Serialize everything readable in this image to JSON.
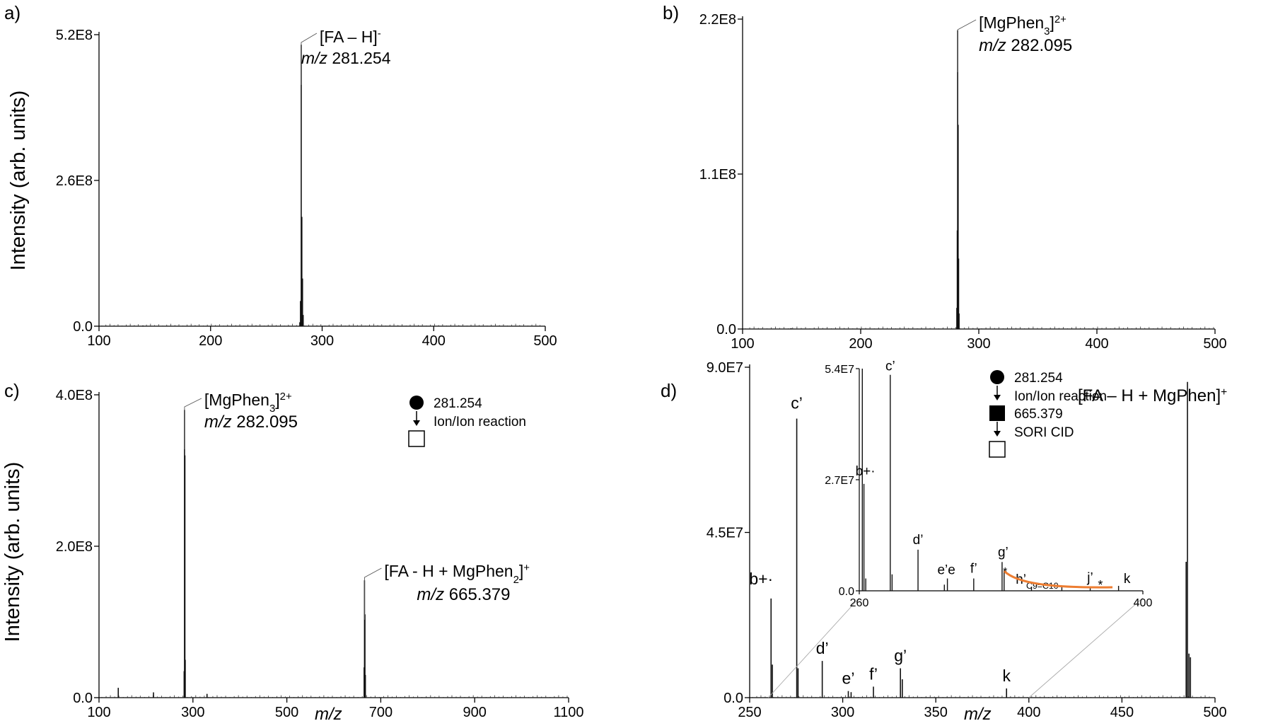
{
  "figure": {
    "y_axis_label": "Intensity (arb. units)",
    "x_axis_label": "m/z"
  },
  "chart_data": [
    {
      "panel": "a)",
      "type": "line",
      "xlim": [
        100,
        500
      ],
      "x_ticks": [
        "100",
        "200",
        "300",
        "400",
        "500"
      ],
      "y_ticks": [
        "0.0",
        "2.6E8",
        "5.2E8"
      ],
      "ylim": [
        0,
        520000000.0
      ],
      "xlabel": "",
      "ylabel": "Intensity (arb. units)",
      "peaks": [
        {
          "x": 139.5,
          "y": 1200000.0
        },
        {
          "x": 280.0,
          "y": 7000000.0
        },
        {
          "x": 280.6,
          "y": 45000000.0
        },
        {
          "x": 281.254,
          "y": 502000000.0
        },
        {
          "x": 281.8,
          "y": 195000000.0
        },
        {
          "x": 282.4,
          "y": 85000000.0
        },
        {
          "x": 283.0,
          "y": 20000000.0
        }
      ],
      "annotations": [
        {
          "x": 281.254,
          "lines": [
            "[FA – H]⁻",
            "m/z 281.254"
          ]
        }
      ]
    },
    {
      "panel": "b)",
      "type": "line",
      "xlim": [
        100,
        500
      ],
      "x_ticks": [
        "100",
        "200",
        "300",
        "400",
        "500"
      ],
      "y_ticks": [
        "0.0",
        "1.1E8",
        "2.2E8"
      ],
      "ylim": [
        0,
        220000000.0
      ],
      "xlabel": "",
      "ylabel": "",
      "peaks": [
        {
          "x": 141.0,
          "y": 600000.0
        },
        {
          "x": 248.5,
          "y": 300000.0
        },
        {
          "x": 281.4,
          "y": 15000000.0
        },
        {
          "x": 281.8,
          "y": 70000000.0
        },
        {
          "x": 282.095,
          "y": 212000000.0
        },
        {
          "x": 282.5,
          "y": 145000000.0
        },
        {
          "x": 282.9,
          "y": 50000000.0
        },
        {
          "x": 283.3,
          "y": 11000000.0
        }
      ],
      "annotations": [
        {
          "x": 282.095,
          "lines": [
            "[MgPhen₃]²⁺",
            "m/z 282.095"
          ]
        }
      ]
    },
    {
      "panel": "c)",
      "type": "line",
      "xlim": [
        100,
        1100
      ],
      "x_ticks": [
        "100",
        "300",
        "500",
        "700",
        "900",
        "1100"
      ],
      "y_ticks": [
        "0.0",
        "2.0E8",
        "4.0E8"
      ],
      "ylim": [
        0,
        400000000.0
      ],
      "xlabel": "m/z",
      "ylabel": "Intensity (arb. units)",
      "peaks": [
        {
          "x": 141.0,
          "y": 13000000.0
        },
        {
          "x": 216.0,
          "y": 7000000.0
        },
        {
          "x": 281.3,
          "y": 35000000.0
        },
        {
          "x": 282.095,
          "y": 380000000.0
        },
        {
          "x": 282.9,
          "y": 320000000.0
        },
        {
          "x": 283.6,
          "y": 50000000.0
        },
        {
          "x": 330.0,
          "y": 5000000.0
        },
        {
          "x": 664.6,
          "y": 40000000.0
        },
        {
          "x": 665.379,
          "y": 155000000.0
        },
        {
          "x": 666.3,
          "y": 110000000.0
        },
        {
          "x": 667.2,
          "y": 30000000.0
        }
      ],
      "annotations": [
        {
          "x": 282.095,
          "lines": [
            "[MgPhen₃]²⁺",
            "m/z 282.095"
          ]
        },
        {
          "x": 665.379,
          "lines": [
            "[FA - H + MgPhen₂]⁺",
            "m/z 665.379"
          ]
        }
      ],
      "scheme": [
        "281.254",
        "Ion/Ion reaction"
      ]
    },
    {
      "panel": "d)",
      "type": "line",
      "xlim": [
        250,
        500
      ],
      "x_ticks": [
        "250",
        "300",
        "350",
        "400",
        "450",
        "500"
      ],
      "y_ticks": [
        "0.0",
        "4.5E7",
        "9.0E7"
      ],
      "ylim": [
        0,
        90000000.0
      ],
      "xlabel": "m/z",
      "ylabel": "",
      "peaks": [
        {
          "x": 261.5,
          "y": 27000000.0
        },
        {
          "x": 262.2,
          "y": 9000000.0
        },
        {
          "x": 275.3,
          "y": 76000000.0
        },
        {
          "x": 276.0,
          "y": 8000000.0
        },
        {
          "x": 289.0,
          "y": 10000000.0
        },
        {
          "x": 303.0,
          "y": 1800000.0
        },
        {
          "x": 304.5,
          "y": 1500000.0
        },
        {
          "x": 316.5,
          "y": 3000000.0
        },
        {
          "x": 331.0,
          "y": 8000000.0
        },
        {
          "x": 332.0,
          "y": 5000000.0
        },
        {
          "x": 388.0,
          "y": 2500000.0
        },
        {
          "x": 484.5,
          "y": 37000000.0
        },
        {
          "x": 485.2,
          "y": 86000000.0
        },
        {
          "x": 486.0,
          "y": 12000000.0
        },
        {
          "x": 486.8,
          "y": 11000000.0
        }
      ],
      "annotations": [
        {
          "x": 485.2,
          "lines": [
            "[FA – H + MgPhen]⁺"
          ]
        }
      ],
      "peak_labels": [
        {
          "x": 261.5,
          "label": "b+·"
        },
        {
          "x": 275.3,
          "label": "c’"
        },
        {
          "x": 289.0,
          "label": "d’"
        },
        {
          "x": 303.0,
          "label": "e’"
        },
        {
          "x": 316.5,
          "label": "f’"
        },
        {
          "x": 331.0,
          "label": "g’"
        },
        {
          "x": 388.0,
          "label": "k"
        }
      ],
      "scheme": [
        "281.254",
        "Ion/Ion reaction",
        "665.379",
        "SORI CID"
      ],
      "inset": {
        "type": "line",
        "xlim": [
          260,
          400
        ],
        "x_ticks": [
          "260",
          "400"
        ],
        "y_ticks": [
          "0.0",
          "2.7E7",
          "5.4E7"
        ],
        "ylim": [
          0,
          54000000.0
        ],
        "peaks": [
          {
            "x": 261.5,
            "y": 54000000.0
          },
          {
            "x": 262.3,
            "y": 26000000.0
          },
          {
            "x": 263.2,
            "y": 3000000.0
          },
          {
            "x": 275.3,
            "y": 52500000.0
          },
          {
            "x": 276.2,
            "y": 4000000.0
          },
          {
            "x": 289.0,
            "y": 10000000.0
          },
          {
            "x": 302.0,
            "y": 1500000.0
          },
          {
            "x": 303.5,
            "y": 3000000.0
          },
          {
            "x": 316.5,
            "y": 3000000.0
          },
          {
            "x": 330.5,
            "y": 7000000.0
          },
          {
            "x": 331.5,
            "y": 5000000.0
          },
          {
            "x": 345.0,
            "y": 1000000.0
          },
          {
            "x": 360.0,
            "y": 1000000.0
          },
          {
            "x": 374.0,
            "y": 800000.0
          },
          {
            "x": 388.0,
            "y": 1200000.0
          }
        ],
        "peak_labels": [
          {
            "x": 262.3,
            "label": "b+·",
            "y": 26000000.0
          },
          {
            "x": 275.3,
            "label": "c’",
            "y": 52500000.0
          },
          {
            "x": 289.0,
            "label": "d’",
            "y": 10000000.0
          },
          {
            "x": 303.0,
            "label": "e’e",
            "y": 3000000.0
          },
          {
            "x": 316.5,
            "label": "f’",
            "y": 3000000.0
          },
          {
            "x": 331.0,
            "label": "g’",
            "y": 7000000.0
          },
          {
            "x": 345.0,
            "label": "h’",
            "y": 1000000.0,
            "sub": "C9=C10"
          },
          {
            "x": 374.0,
            "label": "j’",
            "y": 800000.0
          },
          {
            "x": 388.0,
            "label": "k",
            "y": 1200000.0
          }
        ],
        "stars": [
          "*",
          "*"
        ],
        "highlight_color": "#ed7d31"
      }
    }
  ]
}
